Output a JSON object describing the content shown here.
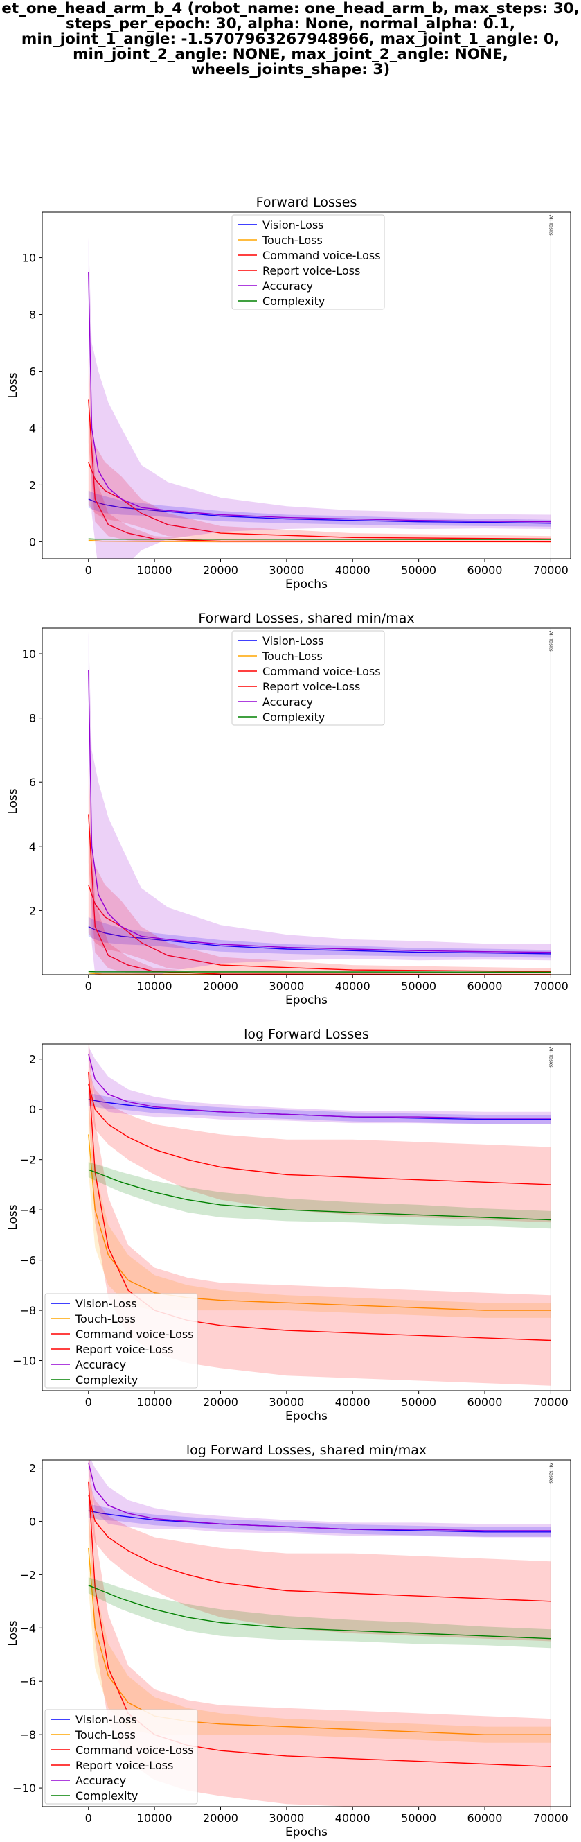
{
  "figure": {
    "title_lines": [
      "et_one_head_arm_b_4 (robot_name: one_head_arm_b, max_steps: 30,",
      "steps_per_epoch: 30, alpha: None, normal_alpha: 0.1,",
      "min_joint_1_angle: -1.5707963267948966, max_joint_1_angle: 0,",
      "min_joint_2_angle: NONE, max_joint_2_angle: NONE, wheels_joints_shape: 3)"
    ]
  },
  "chart_data": [
    {
      "type": "line",
      "title": "Forward Losses",
      "xlabel": "Epochs",
      "ylabel": "Loss",
      "xlim": [
        -7000,
        73000
      ],
      "ylim": [
        -0.6,
        11.6
      ],
      "xticks": [
        0,
        10000,
        20000,
        30000,
        40000,
        50000,
        60000,
        70000
      ],
      "yticks": [
        0,
        2,
        4,
        6,
        8,
        10
      ],
      "log": false,
      "legend_position": "top-center",
      "vline": {
        "x": 70000,
        "label": "All Tasks"
      },
      "series": [
        {
          "name": "Vision-Loss",
          "color": "#0000ff",
          "x": [
            0,
            1000,
            2500,
            5000,
            10000,
            20000,
            30000,
            40000,
            50000,
            60000,
            70000
          ],
          "y": [
            1.5,
            1.4,
            1.3,
            1.2,
            1.1,
            0.9,
            0.8,
            0.75,
            0.7,
            0.68,
            0.65
          ],
          "band": [
            0.3,
            0.3,
            0.3,
            0.25,
            0.2,
            0.18,
            0.15,
            0.15,
            0.13,
            0.13,
            0.12
          ]
        },
        {
          "name": "Touch-Loss",
          "color": "#ffa500",
          "x": [
            0,
            2000,
            10000,
            70000
          ],
          "y": [
            0.05,
            0.02,
            0.01,
            0.0
          ],
          "band": [
            0.05,
            0.02,
            0.01,
            0.0
          ]
        },
        {
          "name": "Command voice-Loss",
          "color": "#ff0000",
          "x": [
            0,
            1000,
            3000,
            6000,
            10000,
            20000,
            40000,
            70000
          ],
          "y": [
            5.0,
            1.5,
            0.6,
            0.3,
            0.1,
            0.02,
            0.01,
            0.0
          ],
          "band": [
            1.5,
            0.8,
            0.4,
            0.25,
            0.1,
            0.05,
            0.03,
            0.02
          ]
        },
        {
          "name": "Report voice-Loss",
          "color": "#ff0000",
          "x": [
            0,
            1000,
            2500,
            5000,
            8000,
            12000,
            20000,
            40000,
            70000
          ],
          "y": [
            2.8,
            2.2,
            1.8,
            1.5,
            1.0,
            0.6,
            0.3,
            0.15,
            0.1
          ],
          "band": [
            1.5,
            1.2,
            1.0,
            0.8,
            0.5,
            0.4,
            0.25,
            0.15,
            0.1
          ]
        },
        {
          "name": "Accuracy",
          "color": "#9400d3",
          "x": [
            0,
            500,
            1500,
            3000,
            5000,
            8000,
            12000,
            20000,
            30000,
            40000,
            50000,
            60000,
            70000
          ],
          "y": [
            9.5,
            4.0,
            2.5,
            1.9,
            1.5,
            1.2,
            1.1,
            0.95,
            0.85,
            0.8,
            0.75,
            0.72,
            0.7
          ],
          "band": [
            1.2,
            3.0,
            3.5,
            3.0,
            2.5,
            1.5,
            1.0,
            0.6,
            0.4,
            0.3,
            0.3,
            0.25,
            0.25
          ]
        },
        {
          "name": "Complexity",
          "color": "#008000",
          "x": [
            0,
            1000,
            70000
          ],
          "y": [
            0.1,
            0.09,
            0.08
          ],
          "band": [
            0.03,
            0.02,
            0.02
          ]
        }
      ]
    },
    {
      "type": "line",
      "title": "Forward Losses, shared min/max",
      "xlabel": "Epochs",
      "ylabel": "Loss",
      "xlim": [
        -7000,
        73000
      ],
      "ylim": [
        0.0,
        10.8
      ],
      "xticks": [
        0,
        10000,
        20000,
        30000,
        40000,
        50000,
        60000,
        70000
      ],
      "yticks": [
        2,
        4,
        6,
        8,
        10
      ],
      "log": false,
      "legend_position": "top-center",
      "vline": {
        "x": 70000,
        "label": "All Tasks"
      },
      "series": [
        {
          "name": "Vision-Loss",
          "color": "#0000ff",
          "x": [
            0,
            1000,
            2500,
            5000,
            10000,
            20000,
            30000,
            40000,
            50000,
            60000,
            70000
          ],
          "y": [
            1.5,
            1.4,
            1.3,
            1.2,
            1.1,
            0.9,
            0.8,
            0.75,
            0.7,
            0.68,
            0.65
          ],
          "band": [
            0.3,
            0.3,
            0.3,
            0.25,
            0.2,
            0.18,
            0.15,
            0.15,
            0.13,
            0.13,
            0.12
          ]
        },
        {
          "name": "Touch-Loss",
          "color": "#ffa500",
          "x": [
            0,
            2000,
            10000,
            70000
          ],
          "y": [
            0.05,
            0.02,
            0.01,
            0.0
          ],
          "band": [
            0.05,
            0.02,
            0.01,
            0.0
          ]
        },
        {
          "name": "Command voice-Loss",
          "color": "#ff0000",
          "x": [
            0,
            1000,
            3000,
            6000,
            10000,
            20000,
            40000,
            70000
          ],
          "y": [
            5.0,
            1.5,
            0.6,
            0.3,
            0.1,
            0.02,
            0.01,
            0.0
          ],
          "band": [
            1.5,
            0.8,
            0.4,
            0.25,
            0.1,
            0.05,
            0.03,
            0.02
          ]
        },
        {
          "name": "Report voice-Loss",
          "color": "#ff0000",
          "x": [
            0,
            1000,
            2500,
            5000,
            8000,
            12000,
            20000,
            40000,
            70000
          ],
          "y": [
            2.8,
            2.2,
            1.8,
            1.5,
            1.0,
            0.6,
            0.3,
            0.15,
            0.1
          ],
          "band": [
            1.5,
            1.2,
            1.0,
            0.8,
            0.5,
            0.4,
            0.25,
            0.15,
            0.1
          ]
        },
        {
          "name": "Accuracy",
          "color": "#9400d3",
          "x": [
            0,
            500,
            1500,
            3000,
            5000,
            8000,
            12000,
            20000,
            30000,
            40000,
            50000,
            60000,
            70000
          ],
          "y": [
            9.5,
            4.0,
            2.5,
            1.9,
            1.5,
            1.2,
            1.1,
            0.95,
            0.85,
            0.8,
            0.75,
            0.72,
            0.7
          ],
          "band": [
            1.2,
            3.0,
            3.5,
            3.0,
            2.5,
            1.5,
            1.0,
            0.6,
            0.4,
            0.3,
            0.3,
            0.25,
            0.25
          ]
        },
        {
          "name": "Complexity",
          "color": "#008000",
          "x": [
            0,
            1000,
            70000
          ],
          "y": [
            0.1,
            0.09,
            0.08
          ],
          "band": [
            0.03,
            0.02,
            0.02
          ]
        }
      ]
    },
    {
      "type": "line",
      "title": "log Forward Losses",
      "xlabel": "Epochs",
      "ylabel": "Loss",
      "xlim": [
        -7000,
        73000
      ],
      "ylim": [
        -11.2,
        2.6
      ],
      "xticks": [
        0,
        10000,
        20000,
        30000,
        40000,
        50000,
        60000,
        70000
      ],
      "yticks": [
        -10,
        -8,
        -6,
        -4,
        -2,
        0,
        2
      ],
      "log": true,
      "legend_position": "lower-left",
      "vline": {
        "x": 70000,
        "label": "All Tasks"
      },
      "series": [
        {
          "name": "Vision-Loss",
          "color": "#0000ff",
          "x": [
            0,
            2000,
            5000,
            10000,
            20000,
            30000,
            40000,
            50000,
            60000,
            70000
          ],
          "y": [
            0.4,
            0.3,
            0.2,
            0.05,
            -0.1,
            -0.2,
            -0.3,
            -0.35,
            -0.4,
            -0.4
          ],
          "band": [
            0.25,
            0.25,
            0.2,
            0.2,
            0.18,
            0.18,
            0.18,
            0.18,
            0.18,
            0.18
          ]
        },
        {
          "name": "Touch-Loss",
          "color": "#ffa500",
          "x": [
            0,
            1000,
            3000,
            6000,
            10000,
            15000,
            20000,
            30000,
            40000,
            50000,
            60000,
            70000
          ],
          "y": [
            -1.0,
            -4.0,
            -5.8,
            -6.8,
            -7.3,
            -7.5,
            -7.6,
            -7.7,
            -7.8,
            -7.9,
            -8.0,
            -8.0
          ],
          "band": [
            1.5,
            1.5,
            1.2,
            1.0,
            0.7,
            0.5,
            0.4,
            0.3,
            0.3,
            0.3,
            0.3,
            0.3
          ]
        },
        {
          "name": "Command voice-Loss",
          "color": "#ff0000",
          "x": [
            0,
            1000,
            3000,
            6000,
            10000,
            15000,
            20000,
            30000,
            40000,
            50000,
            60000,
            70000
          ],
          "y": [
            1.5,
            -2.5,
            -5.5,
            -7.2,
            -8.0,
            -8.4,
            -8.6,
            -8.8,
            -8.9,
            -9.0,
            -9.1,
            -9.2
          ],
          "band": [
            1.5,
            2.0,
            2.0,
            1.8,
            1.7,
            1.7,
            1.7,
            1.8,
            1.8,
            1.8,
            1.8,
            1.8
          ]
        },
        {
          "name": "Report voice-Loss",
          "color": "#ff0000",
          "x": [
            0,
            1000,
            3000,
            6000,
            10000,
            15000,
            20000,
            30000,
            40000,
            50000,
            60000,
            70000
          ],
          "y": [
            1.0,
            0.0,
            -0.6,
            -1.1,
            -1.6,
            -2.0,
            -2.3,
            -2.6,
            -2.7,
            -2.8,
            -2.9,
            -3.0
          ],
          "band": [
            0.6,
            0.8,
            0.8,
            0.9,
            1.0,
            1.2,
            1.3,
            1.4,
            1.5,
            1.5,
            1.5,
            1.5
          ]
        },
        {
          "name": "Accuracy",
          "color": "#9400d3",
          "x": [
            0,
            1000,
            3000,
            6000,
            10000,
            15000,
            20000,
            30000,
            40000,
            50000,
            60000,
            70000
          ],
          "y": [
            2.2,
            1.2,
            0.6,
            0.3,
            0.1,
            0.0,
            -0.1,
            -0.2,
            -0.3,
            -0.3,
            -0.35,
            -0.35
          ],
          "band": [
            0.3,
            0.8,
            0.7,
            0.5,
            0.4,
            0.3,
            0.3,
            0.25,
            0.25,
            0.25,
            0.25,
            0.25
          ]
        },
        {
          "name": "Complexity",
          "color": "#008000",
          "x": [
            0,
            2000,
            5000,
            10000,
            15000,
            20000,
            30000,
            40000,
            50000,
            60000,
            70000
          ],
          "y": [
            -2.4,
            -2.6,
            -2.9,
            -3.3,
            -3.6,
            -3.8,
            -4.0,
            -4.1,
            -4.2,
            -4.3,
            -4.4
          ],
          "band": [
            0.3,
            0.35,
            0.4,
            0.45,
            0.5,
            0.5,
            0.45,
            0.4,
            0.4,
            0.35,
            0.35
          ]
        }
      ]
    },
    {
      "type": "line",
      "title": "log Forward Losses, shared min/max",
      "xlabel": "Epochs",
      "ylabel": "Loss",
      "xlim": [
        -7000,
        73000
      ],
      "ylim": [
        -10.7,
        2.3
      ],
      "xticks": [
        0,
        10000,
        20000,
        30000,
        40000,
        50000,
        60000,
        70000
      ],
      "yticks": [
        -10,
        -8,
        -6,
        -4,
        -2,
        0,
        2
      ],
      "log": true,
      "legend_position": "lower-left",
      "vline": {
        "x": 70000,
        "label": "All Tasks"
      },
      "series": [
        {
          "name": "Vision-Loss",
          "color": "#0000ff",
          "x": [
            0,
            2000,
            5000,
            10000,
            20000,
            30000,
            40000,
            50000,
            60000,
            70000
          ],
          "y": [
            0.4,
            0.3,
            0.2,
            0.05,
            -0.1,
            -0.2,
            -0.3,
            -0.35,
            -0.4,
            -0.4
          ],
          "band": [
            0.25,
            0.25,
            0.2,
            0.2,
            0.18,
            0.18,
            0.18,
            0.18,
            0.18,
            0.18
          ]
        },
        {
          "name": "Touch-Loss",
          "color": "#ffa500",
          "x": [
            0,
            1000,
            3000,
            6000,
            10000,
            15000,
            20000,
            30000,
            40000,
            50000,
            60000,
            70000
          ],
          "y": [
            -1.0,
            -4.0,
            -5.8,
            -6.8,
            -7.3,
            -7.5,
            -7.6,
            -7.7,
            -7.8,
            -7.9,
            -8.0,
            -8.0
          ],
          "band": [
            1.5,
            1.5,
            1.2,
            1.0,
            0.7,
            0.5,
            0.4,
            0.3,
            0.3,
            0.3,
            0.3,
            0.3
          ]
        },
        {
          "name": "Command voice-Loss",
          "color": "#ff0000",
          "x": [
            0,
            1000,
            3000,
            6000,
            10000,
            15000,
            20000,
            30000,
            40000,
            50000,
            60000,
            70000
          ],
          "y": [
            1.5,
            -2.5,
            -5.5,
            -7.2,
            -8.0,
            -8.4,
            -8.6,
            -8.8,
            -8.9,
            -9.0,
            -9.1,
            -9.2
          ],
          "band": [
            1.5,
            2.0,
            2.0,
            1.8,
            1.7,
            1.7,
            1.7,
            1.8,
            1.8,
            1.8,
            1.8,
            1.8
          ]
        },
        {
          "name": "Report voice-Loss",
          "color": "#ff0000",
          "x": [
            0,
            1000,
            3000,
            6000,
            10000,
            15000,
            20000,
            30000,
            40000,
            50000,
            60000,
            70000
          ],
          "y": [
            1.0,
            0.0,
            -0.6,
            -1.1,
            -1.6,
            -2.0,
            -2.3,
            -2.6,
            -2.7,
            -2.8,
            -2.9,
            -3.0
          ],
          "band": [
            0.6,
            0.8,
            0.8,
            0.9,
            1.0,
            1.2,
            1.3,
            1.4,
            1.5,
            1.5,
            1.5,
            1.5
          ]
        },
        {
          "name": "Accuracy",
          "color": "#9400d3",
          "x": [
            0,
            1000,
            3000,
            6000,
            10000,
            15000,
            20000,
            30000,
            40000,
            50000,
            60000,
            70000
          ],
          "y": [
            2.2,
            1.2,
            0.6,
            0.3,
            0.1,
            0.0,
            -0.1,
            -0.2,
            -0.3,
            -0.3,
            -0.35,
            -0.35
          ],
          "band": [
            0.3,
            0.8,
            0.7,
            0.5,
            0.4,
            0.3,
            0.3,
            0.25,
            0.25,
            0.25,
            0.25,
            0.25
          ]
        },
        {
          "name": "Complexity",
          "color": "#008000",
          "x": [
            0,
            2000,
            5000,
            10000,
            15000,
            20000,
            30000,
            40000,
            50000,
            60000,
            70000
          ],
          "y": [
            -2.4,
            -2.6,
            -2.9,
            -3.3,
            -3.6,
            -3.8,
            -4.0,
            -4.1,
            -4.2,
            -4.3,
            -4.4
          ],
          "band": [
            0.3,
            0.35,
            0.4,
            0.45,
            0.5,
            0.5,
            0.45,
            0.4,
            0.4,
            0.35,
            0.35
          ]
        }
      ]
    }
  ]
}
